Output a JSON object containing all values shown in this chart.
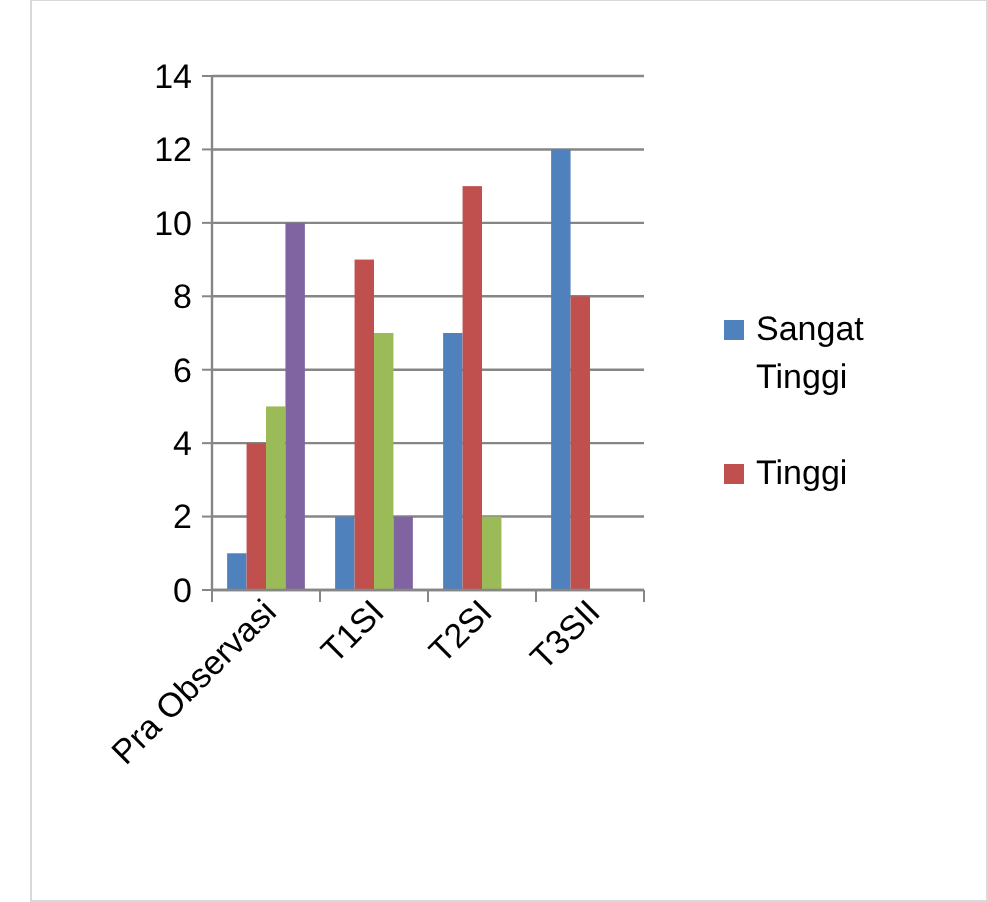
{
  "chart_data": {
    "type": "bar",
    "categories": [
      "Pra Observasi",
      "T1SI",
      "T2SI",
      "T3SII"
    ],
    "series": [
      {
        "name": "Sangat Tinggi",
        "color": "#4f81bd",
        "values": [
          1,
          2,
          7,
          12
        ]
      },
      {
        "name": "Tinggi",
        "color": "#c0504d",
        "values": [
          4,
          9,
          11,
          8
        ]
      },
      {
        "color": "#9bbb59",
        "values": [
          5,
          7,
          2,
          null
        ]
      },
      {
        "color": "#8064a2",
        "values": [
          10,
          2,
          null,
          null
        ]
      }
    ],
    "ylim": [
      0,
      14
    ],
    "yticks": [
      0,
      2,
      4,
      6,
      8,
      10,
      12,
      14
    ],
    "grid": "y",
    "legend": "right"
  }
}
